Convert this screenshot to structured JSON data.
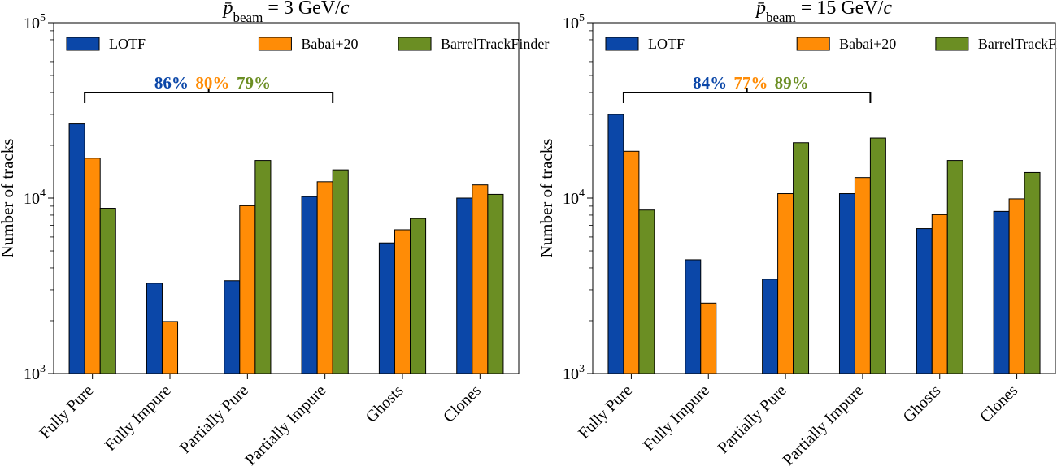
{
  "chart_data": [
    {
      "type": "bar",
      "title_main": "p̄",
      "title_sub": "beam",
      "title_rest": " = 3 GeV/",
      "title_italic": "c",
      "ylabel": "Number of tracks",
      "yscale": "log",
      "ylim": [
        1000,
        100000
      ],
      "ytick_labels": [
        {
          "base": "10",
          "exp": "3",
          "value": 1000
        },
        {
          "base": "10",
          "exp": "4",
          "value": 10000
        },
        {
          "base": "10",
          "exp": "5",
          "value": 100000
        }
      ],
      "categories": [
        "Fully Pure",
        "Fully Impure",
        "Partially Pure",
        "Partially Impure",
        "Ghosts",
        "Clones"
      ],
      "series": [
        {
          "name": "LOTF",
          "color": "#0b47a8",
          "values": [
            26500,
            3270,
            3380,
            10200,
            5550,
            10000
          ]
        },
        {
          "name": "Babai+20",
          "color": "#ff8c06",
          "values": [
            16900,
            1980,
            9050,
            12400,
            6600,
            11900
          ]
        },
        {
          "name": "BarrelTrackFinder",
          "color": "#6b8e23",
          "values": [
            8750,
            null,
            16400,
            14500,
            7650,
            10500
          ]
        }
      ],
      "legend": "top",
      "efficiency_bracket": {
        "from_category": "Fully Pure",
        "to_category": "Partially Impure",
        "labels": [
          "86%",
          "80%",
          "79%"
        ]
      }
    },
    {
      "type": "bar",
      "title_main": "p̄",
      "title_sub": "beam",
      "title_rest": " = 15 GeV/",
      "title_italic": "c",
      "ylabel": "Number of tracks",
      "yscale": "log",
      "ylim": [
        1000,
        100000
      ],
      "ytick_labels": [
        {
          "base": "10",
          "exp": "3",
          "value": 1000
        },
        {
          "base": "10",
          "exp": "4",
          "value": 10000
        },
        {
          "base": "10",
          "exp": "5",
          "value": 100000
        }
      ],
      "categories": [
        "Fully Pure",
        "Fully Impure",
        "Partially Pure",
        "Partially Impure",
        "Ghosts",
        "Clones"
      ],
      "series": [
        {
          "name": "LOTF",
          "color": "#0b47a8",
          "values": [
            30000,
            4450,
            3450,
            10600,
            6700,
            8400
          ]
        },
        {
          "name": "Babai+20",
          "color": "#ff8c06",
          "values": [
            18500,
            2520,
            10600,
            13100,
            8050,
            9900
          ]
        },
        {
          "name": "BarrelTrackFinder",
          "color": "#6b8e23",
          "values": [
            8550,
            null,
            20700,
            22000,
            16400,
            14000
          ]
        }
      ],
      "legend": "top",
      "efficiency_bracket": {
        "from_category": "Fully Pure",
        "to_category": "Partially Impure",
        "labels": [
          "84%",
          "77%",
          "89%"
        ]
      }
    }
  ]
}
